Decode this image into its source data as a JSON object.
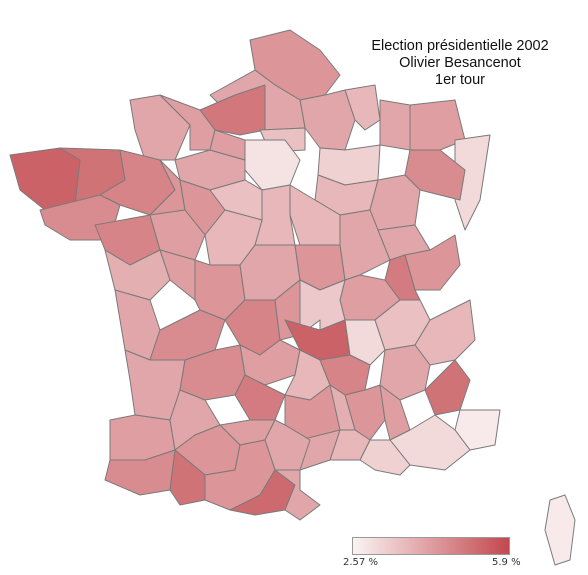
{
  "title": {
    "line1": "Election présidentielle 2002",
    "line2": "Olivier Besancenot",
    "line3": "1er tour"
  },
  "legend": {
    "min_label": "2.57 %",
    "max_label": "5.9 %",
    "min_value": 2.57,
    "max_value": 5.9,
    "color_low": "#fbf3f3",
    "color_high": "#c2484e"
  },
  "colors": {
    "region_border": "#7a7a7a",
    "dept_border": "#b9a9a9"
  }
}
